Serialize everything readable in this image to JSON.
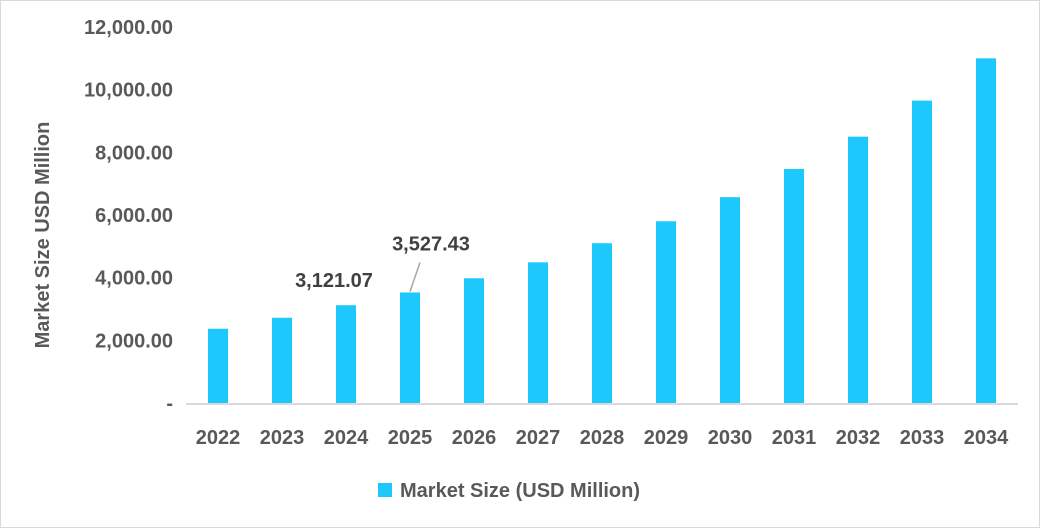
{
  "chart_data": {
    "type": "bar",
    "title": "",
    "xlabel": "",
    "ylabel": "Market Size USD Million",
    "ylim": [
      0,
      12000
    ],
    "yticks": [
      0,
      2000,
      4000,
      6000,
      8000,
      10000,
      12000
    ],
    "ytick_labels": [
      "-",
      "2,000.00",
      "4,000.00",
      "6,000.00",
      "8,000.00",
      "10,000.00",
      "12,000.00"
    ],
    "categories": [
      "2022",
      "2023",
      "2024",
      "2025",
      "2026",
      "2027",
      "2028",
      "2029",
      "2030",
      "2031",
      "2032",
      "2033",
      "2034"
    ],
    "series": [
      {
        "name": "Market Size (USD Million)",
        "color": "#1CC8FC",
        "values": [
          2370,
          2720,
          3121.07,
          3527.43,
          3980,
          4490,
          5100,
          5800,
          6570,
          7470,
          8500,
          9650,
          11000
        ]
      }
    ],
    "data_labels": [
      {
        "category": "2024",
        "text": "3,121.07"
      },
      {
        "category": "2025",
        "text": "3,527.43"
      }
    ],
    "grid": false,
    "legend_position": "bottom"
  }
}
